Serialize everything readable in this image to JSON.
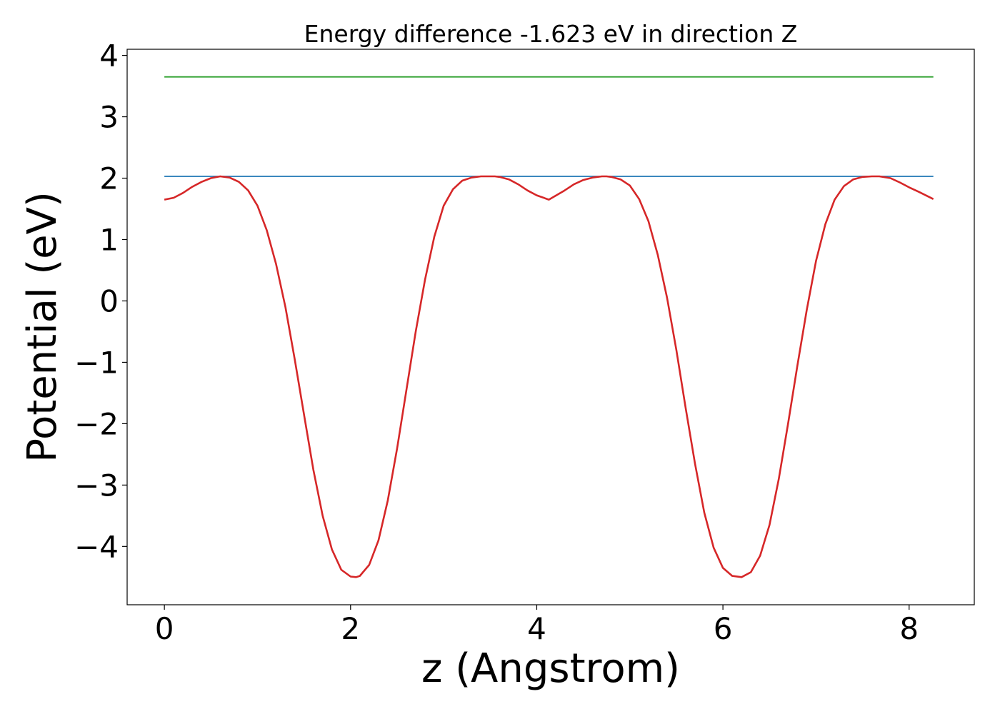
{
  "chart_data": {
    "type": "line",
    "title": "Energy difference -1.623 eV in direction Z",
    "xlabel": "z (Angstrom)",
    "ylabel": "Potential (eV)",
    "xlim": [
      -0.4,
      8.7
    ],
    "ylim": [
      -4.95,
      4.1
    ],
    "xticks": [
      {
        "value": 0,
        "label": "0"
      },
      {
        "value": 2,
        "label": "2"
      },
      {
        "value": 4,
        "label": "4"
      },
      {
        "value": 6,
        "label": "6"
      },
      {
        "value": 8,
        "label": "8"
      }
    ],
    "yticks": [
      {
        "value": -4,
        "label": "−4"
      },
      {
        "value": -3,
        "label": "−3"
      },
      {
        "value": -2,
        "label": "−2"
      },
      {
        "value": -1,
        "label": "−1"
      },
      {
        "value": 0,
        "label": "0"
      },
      {
        "value": 1,
        "label": "1"
      },
      {
        "value": 2,
        "label": "2"
      },
      {
        "value": 3,
        "label": "3"
      },
      {
        "value": 4,
        "label": "4"
      }
    ],
    "grid": false,
    "series": [
      {
        "color": "#2ca02c",
        "x": [
          0,
          8.26
        ],
        "y": [
          3.65,
          3.65
        ]
      },
      {
        "color": "#1f77b4",
        "x": [
          0,
          8.26
        ],
        "y": [
          2.03,
          2.03
        ]
      },
      {
        "color": "#d62728",
        "x": [
          0,
          0.1,
          0.2,
          0.3,
          0.4,
          0.5,
          0.6,
          0.7,
          0.8,
          0.9,
          1.0,
          1.1,
          1.2,
          1.3,
          1.4,
          1.5,
          1.6,
          1.7,
          1.8,
          1.9,
          2.0,
          2.06,
          2.1,
          2.2,
          2.3,
          2.4,
          2.5,
          2.6,
          2.7,
          2.8,
          2.9,
          3.0,
          3.1,
          3.2,
          3.3,
          3.4,
          3.5,
          3.55,
          3.6,
          3.7,
          3.8,
          3.9,
          4.0,
          4.13,
          4.3,
          4.4,
          4.5,
          4.6,
          4.7,
          4.75,
          4.8,
          4.9,
          5.0,
          5.1,
          5.2,
          5.3,
          5.4,
          5.5,
          5.6,
          5.7,
          5.8,
          5.9,
          6.0,
          6.1,
          6.2,
          6.3,
          6.4,
          6.5,
          6.6,
          6.7,
          6.8,
          6.9,
          7.0,
          7.1,
          7.2,
          7.3,
          7.4,
          7.5,
          7.6,
          7.68,
          7.8,
          7.9,
          8.0,
          8.1,
          8.26
        ],
        "y": [
          1.65,
          1.68,
          1.76,
          1.86,
          1.94,
          2.0,
          2.03,
          2.01,
          1.94,
          1.8,
          1.55,
          1.15,
          0.6,
          -0.1,
          -0.95,
          -1.85,
          -2.75,
          -3.5,
          -4.05,
          -4.38,
          -4.49,
          -4.5,
          -4.48,
          -4.3,
          -3.9,
          -3.25,
          -2.4,
          -1.45,
          -0.5,
          0.35,
          1.05,
          1.55,
          1.82,
          1.96,
          2.01,
          2.03,
          2.03,
          2.03,
          2.02,
          1.98,
          1.9,
          1.8,
          1.72,
          1.65,
          1.8,
          1.9,
          1.97,
          2.01,
          2.03,
          2.03,
          2.02,
          1.98,
          1.88,
          1.66,
          1.3,
          0.75,
          0.05,
          -0.8,
          -1.75,
          -2.65,
          -3.45,
          -4.02,
          -4.35,
          -4.48,
          -4.5,
          -4.42,
          -4.15,
          -3.65,
          -2.9,
          -2.0,
          -1.05,
          -0.15,
          0.65,
          1.25,
          1.65,
          1.87,
          1.98,
          2.02,
          2.03,
          2.03,
          2.0,
          1.93,
          1.85,
          1.78,
          1.66
        ]
      }
    ]
  }
}
